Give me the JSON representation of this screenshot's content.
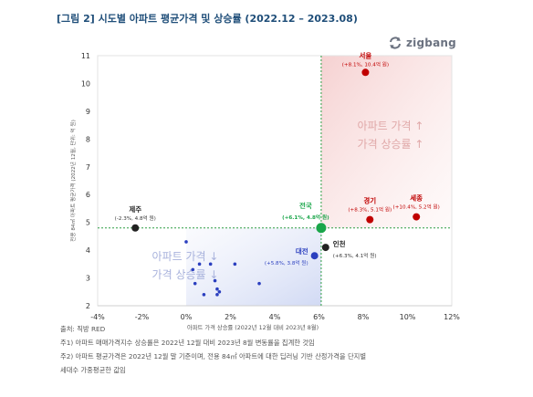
{
  "title": "[그림 2] 시도별 아파트 평균가격 및 상승률 (2022.12 – 2023.08)",
  "logo": {
    "text": "zigbang",
    "icon": "refresh-arrows-icon"
  },
  "chart_data": {
    "type": "scatter",
    "xlabel": "아파트 가격 상승률 (2022년 12월 대비 2023년 8월)",
    "ylabel": "전용 84㎡ 아파트 평균가격 (2022년 12월, 단위: 억 원)",
    "xlim": [
      -4,
      12
    ],
    "ylim": [
      2,
      11
    ],
    "xticks": [
      "-4%",
      "-2%",
      "0%",
      "2%",
      "4%",
      "6%",
      "8%",
      "10%",
      "12%"
    ],
    "yticks": [
      "2",
      "3",
      "4",
      "5",
      "6",
      "7",
      "8",
      "9",
      "10",
      "11"
    ],
    "reference_lines": {
      "x": 6.1,
      "y": 4.8
    },
    "quadrant_labels": {
      "upper_right": [
        "아파트 가격 ↑",
        "가격 상승률 ↑"
      ],
      "lower_left": [
        "아파트 가격 ↓",
        "가격 상승률 ↓"
      ]
    },
    "colors": {
      "high": "#c00000",
      "low": "#2b3fbf",
      "neutral": "#222222",
      "national": "#1aa64a",
      "ref_line": "#2e9e44"
    },
    "labeled_points": [
      {
        "name": "서울",
        "x": 8.1,
        "y": 10.4,
        "note": "(+8.1%, 10.4억 원)",
        "group": "high"
      },
      {
        "name": "경기",
        "x": 8.3,
        "y": 5.1,
        "note": "(+8.3%, 5.1억 원)",
        "group": "high"
      },
      {
        "name": "세종",
        "x": 10.4,
        "y": 5.2,
        "note": "(+10.4%, 5.2억 원)",
        "group": "high"
      },
      {
        "name": "전국",
        "x": 6.1,
        "y": 4.8,
        "note": "(+6.1%, 4.8억 원)",
        "group": "national"
      },
      {
        "name": "제주",
        "x": -2.3,
        "y": 4.8,
        "note": "(-2.3%, 4.8억 원)",
        "group": "neutral"
      },
      {
        "name": "인천",
        "x": 6.3,
        "y": 4.1,
        "note": "(+6.3%, 4.1억 원)",
        "group": "neutral"
      },
      {
        "name": "대전",
        "x": 5.8,
        "y": 3.8,
        "note": "(+5.8%, 3.8억 원)",
        "group": "low"
      }
    ],
    "other_points": [
      {
        "x": 0.0,
        "y": 4.3
      },
      {
        "x": 0.6,
        "y": 3.5
      },
      {
        "x": 1.1,
        "y": 3.5
      },
      {
        "x": 0.3,
        "y": 3.3
      },
      {
        "x": 2.2,
        "y": 3.5
      },
      {
        "x": 1.3,
        "y": 2.9
      },
      {
        "x": 0.4,
        "y": 2.8
      },
      {
        "x": 3.3,
        "y": 2.8
      },
      {
        "x": 1.4,
        "y": 2.6
      },
      {
        "x": 1.5,
        "y": 2.5
      },
      {
        "x": 0.8,
        "y": 2.4
      },
      {
        "x": 1.4,
        "y": 2.4
      }
    ]
  },
  "footer": {
    "source": "출처: 직방 RED",
    "note1": "주1) 아파트 매매가격지수 상승률은 2022년 12월 대비 2023년 8월 변동률을 집계한 것임",
    "note2": "주2) 아파트 평균가격은 2022년 12월 말 기준이며, 전용 84㎡ 아파트에 대한 딥러닝 기반 산정가격을 단지별",
    "note3": "세대수 가중평균한 값임"
  }
}
